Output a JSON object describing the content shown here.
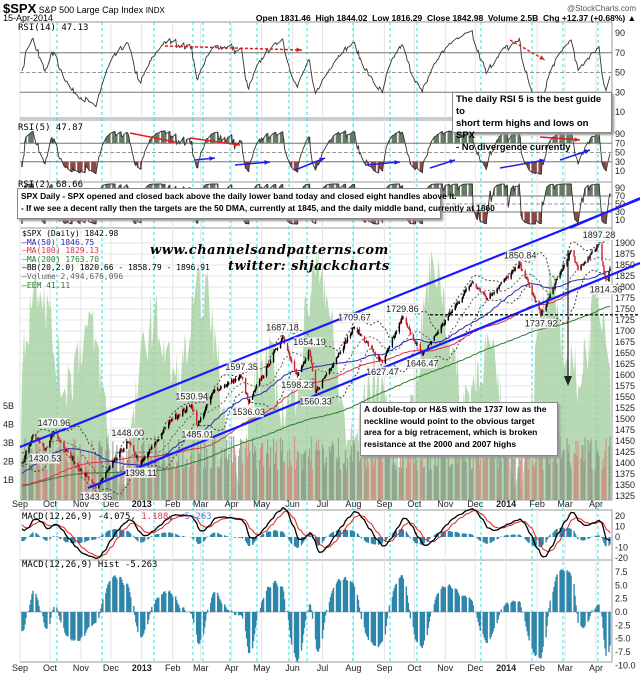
{
  "header": {
    "symbol": "$SPX",
    "name": "S&P 500 Large Cap Index",
    "exchange": "INDX",
    "date": "15-Apr-2014",
    "watermark_site": "@StockCharts.com",
    "quote": "Open 1831.46  High 1844.02  Low 1816.29  Close 1842.98  Volume 2.5B  Chg +12.37 (+0.68%) ▲"
  },
  "panels": {
    "rsi14_label": "RSI(14) 47.13",
    "rsi5_label": "RSI(5) 47.87",
    "rsi2_label": "RSI(2) 68.66",
    "price_legend": [
      {
        "text": "$SPX (Daily) 1842.98",
        "color": "#000000"
      },
      {
        "text": "MA(50) 1846.75",
        "color": "#2b2bb0"
      },
      {
        "text": "MA(100) 1829.13",
        "color": "#e0304a"
      },
      {
        "text": "MA(200) 1763.70",
        "color": "#2e7d32"
      },
      {
        "text": "BB(20,2.0) 1820.66 - 1858.79 - 1896.91",
        "color": "#000000"
      },
      {
        "text": "Volume 2,494,676,096",
        "color": "#666666"
      },
      {
        "text": "EEM 41.11",
        "color": "#2e7d32"
      }
    ],
    "macd_label": {
      "name": "MACD(12,26,9)",
      "v1": "-4.075",
      "v2": "1.188",
      "v3": "-5.263"
    },
    "hist_label": "MACD(12,26,9) Hist -5.263"
  },
  "annotations": {
    "rsi5_note": [
      "The daily RSI 5 is the best guide to",
      "short term highs and lows on SPX",
      "- No divergence currently"
    ],
    "main_note": [
      "SPX Daily - SPX opened and closed back above the daily lower band today and closed eight handles above it.",
      "- If we see a decent rally then the targets are the 50 DMA, currently at 1845, and the daily middle band, currently at 1860"
    ],
    "pattern_note": [
      "A double-top or H&S with the 1737 low as the",
      "neckline would point to the obvious target",
      "area for a big retracement, which is broken",
      "resistance at the 2000 and 2007 highs"
    ],
    "site": "www.channelsandpatterns.com",
    "twitter": "twitter: shjackcharts"
  },
  "colors": {
    "up": "#000000",
    "down": "#d0202a",
    "ma50": "#2b2bb0",
    "ma100": "#e0304a",
    "ma200": "#2e7d32",
    "channel": "#1a1aff",
    "eem": "#a5cfa0",
    "cycle_line": "#33dddd",
    "macd_hist": "#2e86ab"
  },
  "chart_data": {
    "type": "candlestick",
    "title": "$SPX S&P 500 Large Cap Index INDX",
    "price_axis": {
      "ticks": [
        1325,
        1350,
        1375,
        1400,
        1425,
        1450,
        1475,
        1500,
        1525,
        1550,
        1575,
        1600,
        1625,
        1650,
        1675,
        1700,
        1725,
        1750,
        1775,
        1800,
        1825,
        1850,
        1875,
        1900
      ],
      "range": [
        1310,
        1915
      ]
    },
    "volume_axis": {
      "ticks": [
        "1B",
        "2B",
        "3B",
        "4B",
        "5B"
      ]
    },
    "x_axis": {
      "range": [
        "2012-09-01",
        "2014-04-15"
      ],
      "ticks": [
        {
          "label": "Sep",
          "date": "2012-09-01"
        },
        {
          "label": "Oct",
          "date": "2012-10-01"
        },
        {
          "label": "Nov",
          "date": "2012-11-01"
        },
        {
          "label": "Dec",
          "date": "2012-12-01"
        },
        {
          "label": "2013",
          "date": "2013-01-01"
        },
        {
          "label": "Feb",
          "date": "2013-02-01"
        },
        {
          "label": "Mar",
          "date": "2013-03-01"
        },
        {
          "label": "Apr",
          "date": "2013-04-01"
        },
        {
          "label": "May",
          "date": "2013-05-01"
        },
        {
          "label": "Jun",
          "date": "2013-06-01"
        },
        {
          "label": "Jul",
          "date": "2013-07-01"
        },
        {
          "label": "Aug",
          "date": "2013-08-01"
        },
        {
          "label": "Sep",
          "date": "2013-09-01"
        },
        {
          "label": "Oct",
          "date": "2013-10-01"
        },
        {
          "label": "Nov",
          "date": "2013-11-01"
        },
        {
          "label": "Dec",
          "date": "2013-12-01"
        },
        {
          "label": "2014",
          "date": "2014-01-01"
        },
        {
          "label": "Feb",
          "date": "2014-02-01"
        },
        {
          "label": "Mar",
          "date": "2014-03-01"
        },
        {
          "label": "Apr",
          "date": "2014-04-01"
        }
      ]
    },
    "price_labels": [
      {
        "date": "2012-09-26",
        "value": 1430.53,
        "type": "low"
      },
      {
        "date": "2012-10-05",
        "value": 1470.96,
        "type": "high"
      },
      {
        "date": "2012-11-16",
        "value": 1343.35,
        "type": "low"
      },
      {
        "date": "2012-12-18",
        "value": 1448.0,
        "type": "high"
      },
      {
        "date": "2012-12-31",
        "value": 1398.11,
        "type": "low"
      },
      {
        "date": "2013-02-20",
        "value": 1530.94,
        "type": "high"
      },
      {
        "date": "2013-02-26",
        "value": 1485.01,
        "type": "low"
      },
      {
        "date": "2013-04-11",
        "value": 1597.35,
        "type": "high"
      },
      {
        "date": "2013-04-18",
        "value": 1536.03,
        "type": "low"
      },
      {
        "date": "2013-05-22",
        "value": 1687.18,
        "type": "high"
      },
      {
        "date": "2013-06-06",
        "value": 1598.23,
        "type": "low"
      },
      {
        "date": "2013-06-18",
        "value": 1654.19,
        "type": "high"
      },
      {
        "date": "2013-06-24",
        "value": 1560.33,
        "type": "low"
      },
      {
        "date": "2013-08-02",
        "value": 1709.67,
        "type": "high"
      },
      {
        "date": "2013-08-30",
        "value": 1627.47,
        "type": "low"
      },
      {
        "date": "2013-09-19",
        "value": 1729.86,
        "type": "high"
      },
      {
        "date": "2013-10-09",
        "value": 1646.47,
        "type": "low"
      },
      {
        "date": "2014-01-15",
        "value": 1850.84,
        "type": "high"
      },
      {
        "date": "2014-02-05",
        "value": 1737.92,
        "type": "low"
      },
      {
        "date": "2014-04-04",
        "value": 1897.28,
        "type": "high"
      },
      {
        "date": "2014-04-11",
        "value": 1814.36,
        "type": "low"
      }
    ],
    "last_close": {
      "date": "2014-04-15",
      "value": 1842.98
    },
    "neckline": 1737,
    "rsi_ticks": [
      10,
      30,
      50,
      70,
      90
    ],
    "macd_ticks": [
      -20,
      -10,
      0,
      10,
      20
    ],
    "hist_ticks": [
      "7.5",
      "5.0",
      "2.5",
      "0.0",
      "-2.5",
      "-5.0",
      "-7.5",
      "-10.0"
    ]
  }
}
